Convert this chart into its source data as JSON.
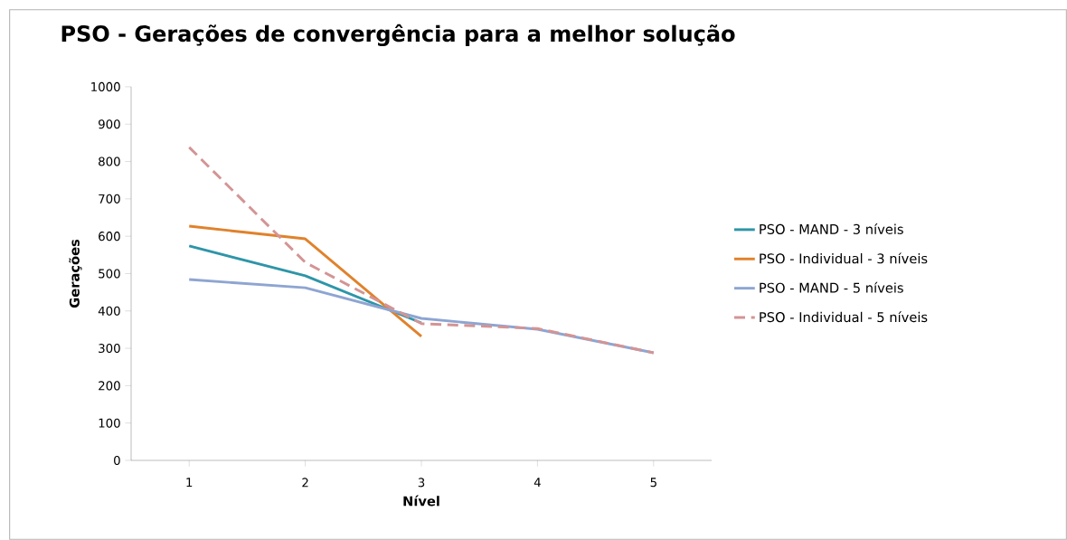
{
  "chart_data": {
    "type": "line",
    "title": "PSO - Gerações de convergência para a melhor solução",
    "xlabel": "Nível",
    "ylabel": "Gerações",
    "categories": [
      "1",
      "2",
      "3",
      "4",
      "5"
    ],
    "series": [
      {
        "name": "PSO - MAND - 3 níveis",
        "color": "#2e95a8",
        "values": [
          574,
          494,
          368,
          null,
          null
        ]
      },
      {
        "name": "PSO - Individual - 3 níveis",
        "color": "#e0822c",
        "values": [
          627,
          593,
          332,
          null,
          null
        ]
      },
      {
        "name": "PSO - MAND - 5 níveis",
        "color": "#8ea5d2",
        "values": [
          484,
          462,
          380,
          351,
          288
        ]
      },
      {
        "name": "PSO - Individual - 5 níveis",
        "color": "#d49494",
        "values": [
          838,
          530,
          366,
          353,
          288
        ],
        "line_style": "dashed"
      }
    ],
    "ylim": [
      0,
      1000
    ],
    "yticks": [
      0,
      100,
      200,
      300,
      400,
      500,
      600,
      700,
      800,
      900,
      1000
    ],
    "grid": false,
    "legend": "right",
    "marker": "none",
    "line_style": "solid"
  }
}
